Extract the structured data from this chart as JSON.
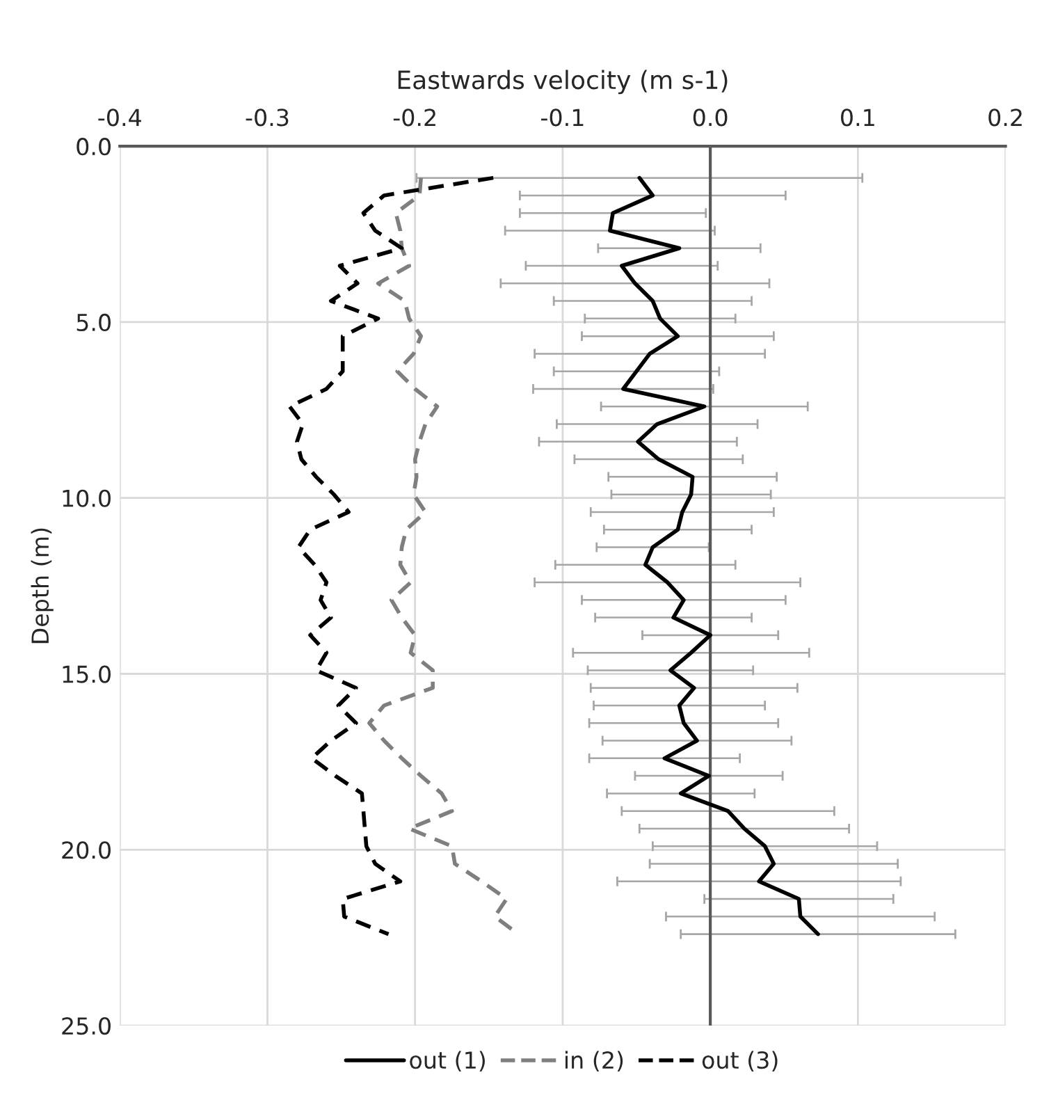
{
  "chart_data": {
    "type": "line",
    "orientation": "horizontal",
    "xlabel": "Eastwards velocity (m s-1)",
    "ylabel": "Depth (m)",
    "xlim": [
      -0.4,
      0.2
    ],
    "xticks": [
      -0.4,
      -0.3,
      -0.2,
      -0.1,
      {
        "value": 0,
        "label": "0.0"
      },
      0.1,
      0.2
    ],
    "ylim": [
      25,
      0
    ],
    "yticks": [
      {
        "value": 0,
        "label": "0.0"
      },
      {
        "value": 5,
        "label": "5.0"
      },
      {
        "value": 10,
        "label": "10.0"
      },
      {
        "value": 15,
        "label": "15.0"
      },
      {
        "value": 20,
        "label": "20.0"
      },
      {
        "value": 25,
        "label": "25.0"
      }
    ],
    "grid": true,
    "legend": "bottom",
    "marker": "none",
    "series": [
      {
        "name": "out (1)",
        "color": "#000000",
        "line_style": "solid",
        "x": [
          0.9,
          1.4,
          1.9,
          2.4,
          2.9,
          3.4,
          3.9,
          4.4,
          4.9,
          5.4,
          5.9,
          6.4,
          6.9,
          7.4,
          7.9,
          8.4,
          8.9,
          9.4,
          9.9,
          10.4,
          10.9,
          11.4,
          11.9,
          12.4,
          12.9,
          13.4,
          13.9,
          14.4,
          14.9,
          15.4,
          15.9,
          16.4,
          16.9,
          17.4,
          17.9,
          18.4,
          18.9,
          19.4,
          19.9,
          20.4,
          20.9,
          21.4,
          21.9,
          22.4
        ],
        "values": [
          -0.048,
          -0.039,
          -0.066,
          -0.068,
          -0.021,
          -0.06,
          -0.051,
          -0.039,
          -0.034,
          -0.022,
          -0.041,
          -0.05,
          -0.059,
          -0.004,
          -0.036,
          -0.049,
          -0.035,
          -0.012,
          -0.013,
          -0.019,
          -0.022,
          -0.039,
          -0.044,
          -0.029,
          -0.018,
          -0.025,
          0.0,
          -0.013,
          -0.027,
          -0.011,
          -0.021,
          -0.018,
          -0.009,
          -0.031,
          -0.001,
          -0.02,
          0.012,
          0.023,
          0.037,
          0.043,
          0.033,
          0.06,
          0.061,
          0.073
        ],
        "errors": [
          0.151,
          0.09,
          0.063,
          0.071,
          0.055,
          0.065,
          0.091,
          0.067,
          0.051,
          0.065,
          0.078,
          0.056,
          0.061,
          0.07,
          0.068,
          0.067,
          0.057,
          0.057,
          0.054,
          0.062,
          0.05,
          0.038,
          0.061,
          0.09,
          0.069,
          0.053,
          0.046,
          0.08,
          0.056,
          0.07,
          0.058,
          0.064,
          0.064,
          0.051,
          0.05,
          0.05,
          0.072,
          0.071,
          0.076,
          0.084,
          0.096,
          0.064,
          0.091,
          0.093
        ]
      },
      {
        "name": "in (2)",
        "color": "#7f7f7f",
        "line_style": "dashed",
        "x": [
          0.9,
          1.4,
          1.9,
          2.4,
          2.9,
          3.4,
          3.9,
          4.4,
          4.9,
          5.4,
          5.9,
          6.4,
          6.9,
          7.4,
          7.9,
          8.4,
          8.9,
          9.4,
          9.9,
          10.4,
          10.9,
          11.4,
          11.9,
          12.4,
          12.9,
          13.4,
          13.9,
          14.4,
          14.9,
          15.4,
          15.9,
          16.4,
          16.9,
          17.4,
          17.9,
          18.4,
          18.9,
          19.4,
          19.9,
          20.4,
          20.9,
          21.4,
          21.9,
          22.4
        ],
        "values": [
          -0.196,
          -0.197,
          -0.213,
          -0.21,
          -0.209,
          -0.204,
          -0.225,
          -0.207,
          -0.204,
          -0.196,
          -0.201,
          -0.212,
          -0.2,
          -0.185,
          -0.193,
          -0.197,
          -0.2,
          -0.199,
          -0.201,
          -0.193,
          -0.206,
          -0.209,
          -0.21,
          -0.203,
          -0.216,
          -0.209,
          -0.2,
          -0.203,
          -0.188,
          -0.188,
          -0.221,
          -0.231,
          -0.221,
          -0.209,
          -0.196,
          -0.182,
          -0.175,
          -0.204,
          -0.175,
          -0.173,
          -0.155,
          -0.138,
          -0.146,
          -0.13
        ]
      },
      {
        "name": "out (3)",
        "color": "#000000",
        "line_style": "dashed",
        "x": [
          0.9,
          1.4,
          1.9,
          2.4,
          2.9,
          3.4,
          3.9,
          4.4,
          4.9,
          5.4,
          5.9,
          6.4,
          6.9,
          7.4,
          7.9,
          8.4,
          8.9,
          9.4,
          9.9,
          10.4,
          10.9,
          11.4,
          11.9,
          12.4,
          12.9,
          13.4,
          13.9,
          14.4,
          14.9,
          15.4,
          15.9,
          16.4,
          16.9,
          17.4,
          17.9,
          18.4,
          18.9,
          19.4,
          19.9,
          20.4,
          20.9,
          21.4,
          21.9,
          22.4
        ],
        "values": [
          -0.147,
          -0.221,
          -0.235,
          -0.227,
          -0.209,
          -0.251,
          -0.239,
          -0.257,
          -0.225,
          -0.249,
          -0.249,
          -0.249,
          -0.26,
          -0.285,
          -0.276,
          -0.28,
          -0.277,
          -0.267,
          -0.255,
          -0.245,
          -0.271,
          -0.279,
          -0.268,
          -0.26,
          -0.264,
          -0.257,
          -0.271,
          -0.26,
          -0.267,
          -0.24,
          -0.252,
          -0.24,
          -0.257,
          -0.27,
          -0.254,
          -0.236,
          -0.235,
          -0.234,
          -0.233,
          -0.227,
          -0.21,
          -0.249,
          -0.248,
          -0.218
        ]
      }
    ]
  }
}
